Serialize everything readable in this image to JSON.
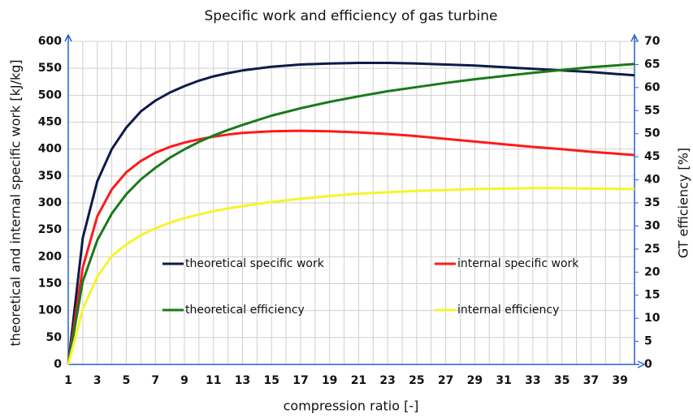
{
  "chart_data": {
    "type": "line",
    "title": "Specific work and efficiency of gas turbine",
    "xlabel": "compression ratio [-]",
    "ylabel": "theoretical and internal specific work [kJ/kg]",
    "y2label": "GT efficiency [%]",
    "x": [
      1,
      2,
      3,
      4,
      5,
      6,
      7,
      8,
      9,
      10,
      11,
      12,
      13,
      15,
      17,
      19,
      21,
      23,
      25,
      27,
      29,
      31,
      33,
      35,
      37,
      40
    ],
    "series": [
      {
        "name": "theoretical specific work",
        "color": "#0d1b4a",
        "axis": "y",
        "values": [
          0,
          235,
          340,
          400,
          440,
          470,
          490,
          505,
          517,
          527,
          535,
          541,
          546,
          553,
          557,
          559,
          560,
          560,
          559,
          557,
          555,
          552,
          549,
          546,
          543,
          537
        ]
      },
      {
        "name": "internal specific work",
        "color": "#ff1a1a",
        "axis": "y",
        "values": [
          0,
          180,
          275,
          325,
          357,
          378,
          393,
          404,
          412,
          418,
          423,
          427,
          430,
          433,
          434,
          433,
          431,
          428,
          424,
          419,
          414,
          409,
          404,
          400,
          395,
          389
        ]
      },
      {
        "name": "theoretical efficiency",
        "color": "#1a7a1a",
        "axis": "y2",
        "values": [
          0,
          18.0,
          26.9,
          32.7,
          36.9,
          40.1,
          42.6,
          44.8,
          46.6,
          48.2,
          49.6,
          50.8,
          51.9,
          53.9,
          55.5,
          56.9,
          58.1,
          59.2,
          60.1,
          61.0,
          61.8,
          62.5,
          63.2,
          63.8,
          64.4,
          65.1
        ]
      },
      {
        "name": "internal efficiency",
        "color": "#f5f52a",
        "axis": "y2",
        "values": [
          0,
          12,
          19,
          23.5,
          26,
          28,
          29.5,
          30.7,
          31.7,
          32.5,
          33.2,
          33.8,
          34.3,
          35.2,
          35.9,
          36.5,
          37,
          37.3,
          37.6,
          37.8,
          38,
          38.1,
          38.2,
          38.2,
          38.1,
          38
        ]
      }
    ],
    "xlim": [
      1,
      40
    ],
    "xticks": [
      1,
      3,
      5,
      7,
      9,
      11,
      13,
      15,
      17,
      19,
      21,
      23,
      25,
      27,
      29,
      31,
      33,
      35,
      37,
      39
    ],
    "xminor": [
      2,
      4,
      6,
      8,
      10,
      12,
      14,
      16,
      18,
      20,
      22,
      24,
      26,
      28,
      30,
      32,
      34,
      36,
      38,
      40
    ],
    "ylim": [
      0,
      600
    ],
    "yticks": [
      0,
      50,
      100,
      150,
      200,
      250,
      300,
      350,
      400,
      450,
      500,
      550,
      600
    ],
    "y2lim": [
      0,
      70
    ],
    "y2ticks": [
      0,
      5,
      10,
      15,
      20,
      25,
      30,
      35,
      40,
      45,
      50,
      55,
      60,
      65,
      70
    ],
    "grid": true
  }
}
